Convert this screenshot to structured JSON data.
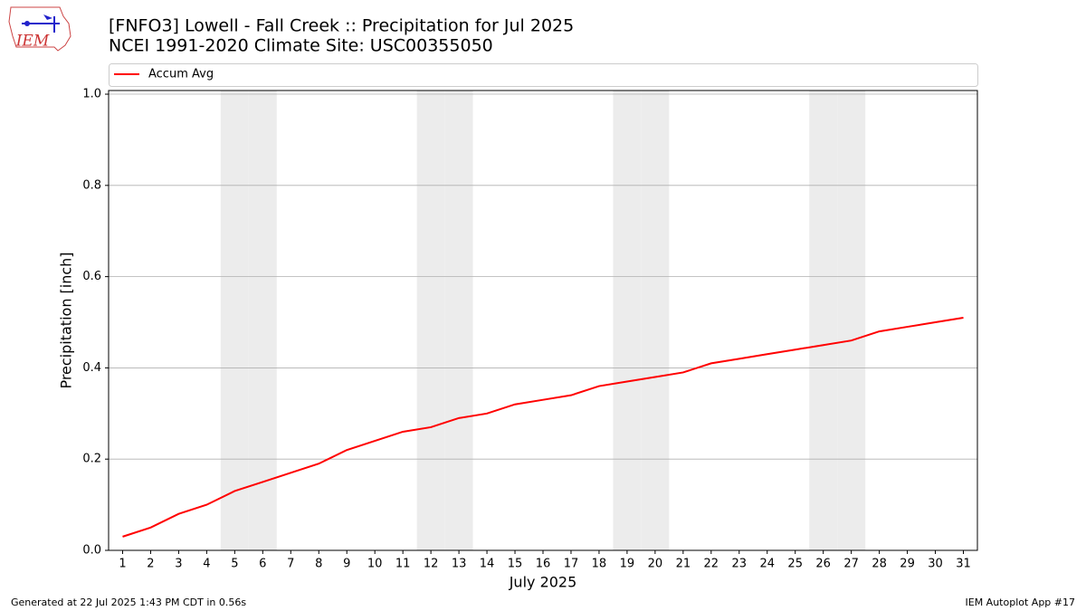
{
  "chart_data": {
    "type": "line",
    "title": "[FNFO3] Lowell - Fall Creek :: Precipitation for Jul 2025",
    "subtitle": "NCEI 1991-2020 Climate Site: USC00355050",
    "logo_text": "IEM",
    "x_label": "July 2025",
    "y_label": "Precipitation [inch]",
    "x": [
      1,
      2,
      3,
      4,
      5,
      6,
      7,
      8,
      9,
      10,
      11,
      12,
      13,
      14,
      15,
      16,
      17,
      18,
      19,
      20,
      21,
      22,
      23,
      24,
      25,
      26,
      27,
      28,
      29,
      30,
      31
    ],
    "series": [
      {
        "name": "Accum Avg",
        "color": "#ff0000",
        "values": [
          0.03,
          0.05,
          0.08,
          0.1,
          0.13,
          0.15,
          0.17,
          0.19,
          0.22,
          0.24,
          0.26,
          0.27,
          0.29,
          0.3,
          0.32,
          0.33,
          0.34,
          0.36,
          0.37,
          0.38,
          0.39,
          0.41,
          0.42,
          0.43,
          0.44,
          0.45,
          0.46,
          0.48,
          0.49,
          0.5,
          0.51
        ]
      }
    ],
    "shaded_days": [
      5,
      6,
      12,
      13,
      19,
      20,
      26,
      27
    ],
    "shade_color": "#ececec",
    "xlim": [
      0.5,
      31.5
    ],
    "xticks": [
      1,
      2,
      3,
      4,
      5,
      6,
      7,
      8,
      9,
      10,
      11,
      12,
      13,
      14,
      15,
      16,
      17,
      18,
      19,
      20,
      21,
      22,
      23,
      24,
      25,
      26,
      27,
      28,
      29,
      30,
      31
    ],
    "ylim": [
      0,
      1.008
    ],
    "yticks": [
      {
        "value": 0,
        "label": "0.0"
      },
      0.2,
      0.4,
      0.6,
      0.8,
      {
        "value": 1,
        "label": "1.0"
      }
    ],
    "grid": true,
    "legend": "top",
    "footer_left": "Generated at 22 Jul 2025 1:43 PM CDT in 0.56s",
    "footer_right": "IEM Autoplot App #17"
  }
}
